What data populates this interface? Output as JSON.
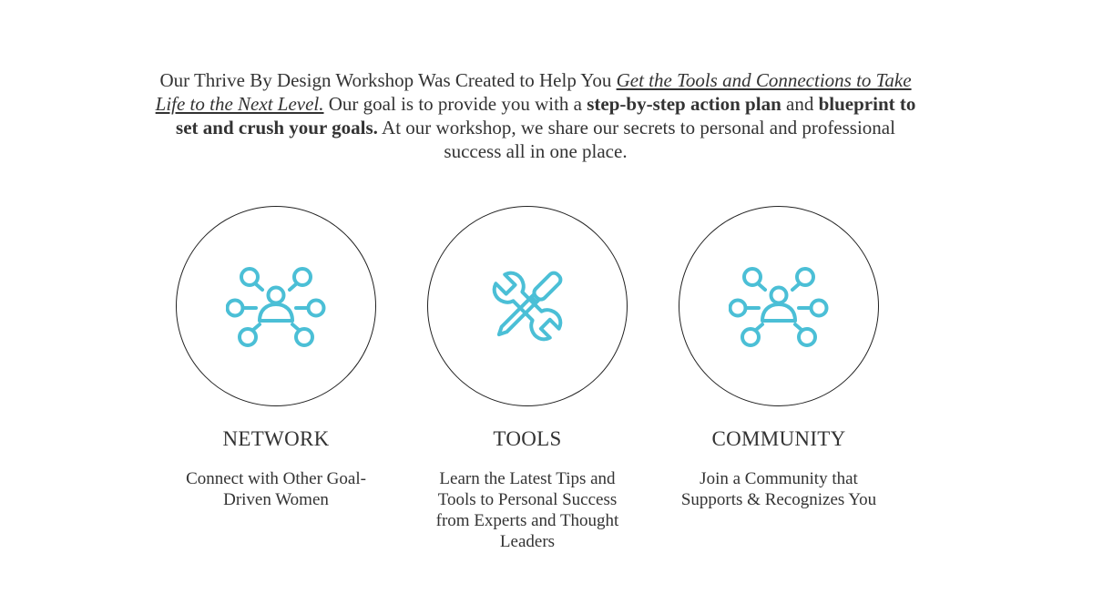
{
  "intro": {
    "lead": "Our Thrive By Design Workshop Was Created to Help You ",
    "link_text": "Get the Tools and Connections to Take Life to the Next Level.",
    "mid1": " Our goal is to provide you with a ",
    "bold1": "step-by-step action plan",
    "mid2": " and ",
    "bold2": "blueprint to set and crush your goals.",
    "tail": " At our workshop, we share our secrets to personal and professional success all in one place."
  },
  "colors": {
    "accent": "#4BBFD6",
    "text": "#333333",
    "circle_border": "#222222"
  },
  "features": [
    {
      "icon": "network-icon",
      "title": "NETWORK",
      "description": "Connect with Other Goal-Driven Women"
    },
    {
      "icon": "tools-icon",
      "title": "TOOLS",
      "description": "Learn the Latest Tips and Tools to Personal Success from Experts and Thought Leaders"
    },
    {
      "icon": "community-icon",
      "title": "COMMUNITY",
      "description": "Join a Community that Supports & Recognizes You"
    }
  ]
}
